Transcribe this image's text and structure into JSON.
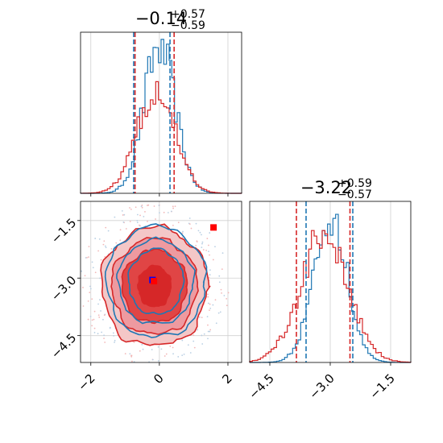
{
  "chart_data": [
    {
      "type": "histogram",
      "panel": "top-left",
      "title": {
        "value": "−0.14",
        "upper": "+0.57",
        "lower": "−0.59"
      },
      "xlim": [
        -2.3,
        2.4
      ],
      "xticks": [
        -2,
        0,
        2
      ],
      "grid": true,
      "series": [
        {
          "color": "#1f77b4",
          "mean": 0.0,
          "sd": 0.46,
          "peak": 0.91,
          "quantile_lines": [
            -0.75,
            0.31
          ]
        },
        {
          "color": "#d62728",
          "mean": -0.1,
          "sd": 0.55,
          "peak": 0.66,
          "quantile_lines": [
            -0.71,
            0.43
          ]
        }
      ]
    },
    {
      "type": "histogram",
      "panel": "bottom-right",
      "title": {
        "value": "−3.22",
        "upper": "+0.59",
        "lower": "−0.57"
      },
      "xlim": [
        -5.0,
        -1.0
      ],
      "xticks": [
        -4.5,
        -3.0,
        -1.5
      ],
      "xtick_labels": [
        "−4.5",
        "−3.0",
        "−1.5"
      ],
      "grid": true,
      "series": [
        {
          "color": "#1f77b4",
          "mean": -3.0,
          "sd": 0.42,
          "peak": 0.9,
          "quantile_lines": [
            -3.6,
            -2.44
          ]
        },
        {
          "color": "#d62728",
          "mean": -3.15,
          "sd": 0.6,
          "peak": 0.78,
          "quantile_lines": [
            -3.84,
            -2.51
          ]
        }
      ]
    },
    {
      "type": "contour",
      "panel": "bottom-left",
      "xlim": [
        -2.3,
        2.4
      ],
      "ylim": [
        -5.2,
        -1.0
      ],
      "xticks": [
        -2,
        0,
        2
      ],
      "yticks": [
        -1.5,
        -3.0,
        -4.5
      ],
      "ytick_labels": [
        "−1.5",
        "−3.0",
        "−4.5"
      ],
      "grid": true,
      "series": [
        {
          "color": "#d62728",
          "fill_colors": [
            "#f4c7c7",
            "#ee9aa0",
            "#e04545",
            "#d62728"
          ],
          "center": [
            -0.14,
            -3.22
          ],
          "radii": [
            [
              1.55,
              1.55
            ],
            [
              1.25,
              1.25
            ],
            [
              0.95,
              0.95
            ],
            [
              0.5,
              0.55
            ]
          ]
        },
        {
          "color": "#1f77b4",
          "center": [
            -0.1,
            -3.1
          ],
          "radii": [
            [
              1.45,
              1.45
            ],
            [
              1.1,
              1.1
            ],
            [
              0.8,
              0.85
            ]
          ]
        }
      ],
      "markers": [
        {
          "color": "#ff0000",
          "x": 1.58,
          "y": -1.68
        },
        {
          "color": "#0000ff",
          "x": -0.2,
          "y": -3.05
        },
        {
          "color": "#ff0000",
          "x": -0.16,
          "y": -3.08
        }
      ]
    }
  ]
}
